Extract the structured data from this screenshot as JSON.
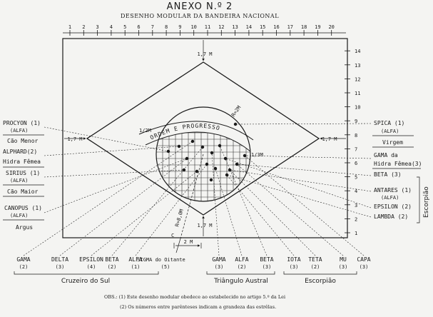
{
  "title": "ANEXO N.º 2",
  "subtitle": "DESENHO MODULAR DA BANDEIRA NACIONAL",
  "motto": "ORDEM E PROGRESSO",
  "top_scale": [
    "1",
    "2",
    "3",
    "4",
    "5",
    "6",
    "7",
    "8",
    "9",
    "10",
    "11",
    "12",
    "13",
    "14",
    "15",
    "16",
    "17",
    "18",
    "19",
    "20"
  ],
  "right_scale": [
    "1",
    "2",
    "3",
    "4",
    "5",
    "6",
    "7",
    "8",
    "9",
    "10",
    "11",
    "12",
    "13",
    "14"
  ],
  "dimensions": {
    "top": "1,7 M",
    "bottom": "1,7 M",
    "left": "1,7 M",
    "right": "1,7 M",
    "radius": "R=8,0M",
    "arc_radius": "R=2M",
    "bottom_width": "2 M",
    "arc_small": "1/2M",
    "arc_right": "1/3M",
    "center": "C"
  },
  "left_stars": [
    {
      "name": "PROCYON (1)",
      "greek": "(ALFA)",
      "constellation": "Cão Menor"
    },
    {
      "name": "ALPHARD(2)",
      "greek": "",
      "constellation": "Hidra Fêmea"
    },
    {
      "name": "SIRIUS (1)",
      "greek": "(ALFA)",
      "constellation": "Cão Maior"
    },
    {
      "name": "CANOPUS (1)",
      "greek": "(ALFA)",
      "constellation": "Argus"
    }
  ],
  "right_stars": [
    {
      "name": "SPICA (1)",
      "greek": "(ALFA)",
      "constellation": "Virgem"
    },
    {
      "name": "GAMA da",
      "greek": "",
      "constellation": "Hidra Fêmea(3)"
    },
    {
      "name": "BETA (3)",
      "greek": "",
      "constellation": ""
    },
    {
      "name": "ANTARES (1)",
      "greek": "(ALFA)",
      "constellation": ""
    },
    {
      "name": "EPSILON (2)",
      "greek": "",
      "constellation": ""
    },
    {
      "name": "LAMBDA (2)",
      "greek": "",
      "constellation": ""
    }
  ],
  "right_group": "Escorpião",
  "bottom_stars": [
    {
      "name": "GAMA",
      "mag": "(2)"
    },
    {
      "name": "DELTA",
      "mag": "(3)"
    },
    {
      "name": "EPSILON",
      "mag": "(4)"
    },
    {
      "name": "BETA",
      "mag": "(2)"
    },
    {
      "name": "ALFA",
      "mag": "(1)"
    },
    {
      "name": "SIGMA do Oitante",
      "mag": "(5)"
    },
    {
      "name": "GAMA",
      "mag": "(3)"
    },
    {
      "name": "ALFA",
      "mag": "(2)"
    },
    {
      "name": "BETA",
      "mag": "(3)"
    },
    {
      "name": "IOTA",
      "mag": "(3)"
    },
    {
      "name": "TETA",
      "mag": "(2)"
    },
    {
      "name": "MU",
      "mag": "(3)"
    },
    {
      "name": "CAPA",
      "mag": "(3)"
    }
  ],
  "bottom_groups": [
    "Cruzeiro do Sul",
    "Triângulo Austral",
    "Escorpião"
  ],
  "notes": [
    "OBS.: (1) Este desenho modular obedece ao estabelecido no artigo 5.º da Lei",
    "(2) Os números entre parênteses indicam a grandeza das estrêlas."
  ]
}
